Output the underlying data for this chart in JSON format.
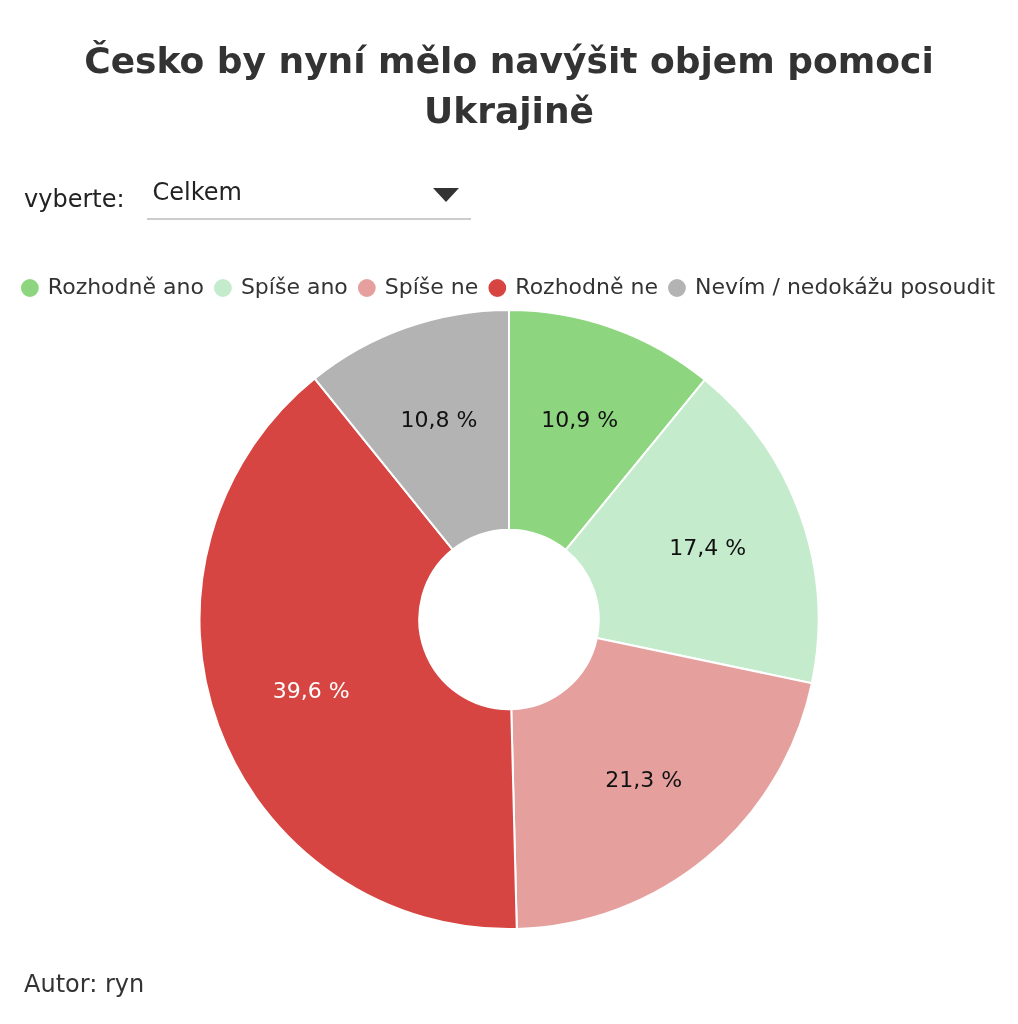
{
  "chart_data": {
    "type": "donut",
    "title": "Česko by nyní mělo navýšit objem pomoci Ukrajině",
    "categories": [
      "Rozhodně ano",
      "Spíše ano",
      "Spíše ne",
      "Rozhodně ne",
      "Nevím / nedokážu posoudit"
    ],
    "values": [
      10.9,
      17.4,
      21.3,
      39.6,
      10.8
    ],
    "colors": [
      "#8dd67f",
      "#c3ebcc",
      "#e5a09e",
      "#d64541",
      "#b3b3b3"
    ],
    "value_labels": [
      "10,9 %",
      "17,4 %",
      "21,3 %",
      "39,6 %",
      "10,8 %"
    ],
    "legend": "top",
    "annotations": [
      "vyberte:",
      "Celkem",
      "Autor: ryn"
    ]
  }
}
